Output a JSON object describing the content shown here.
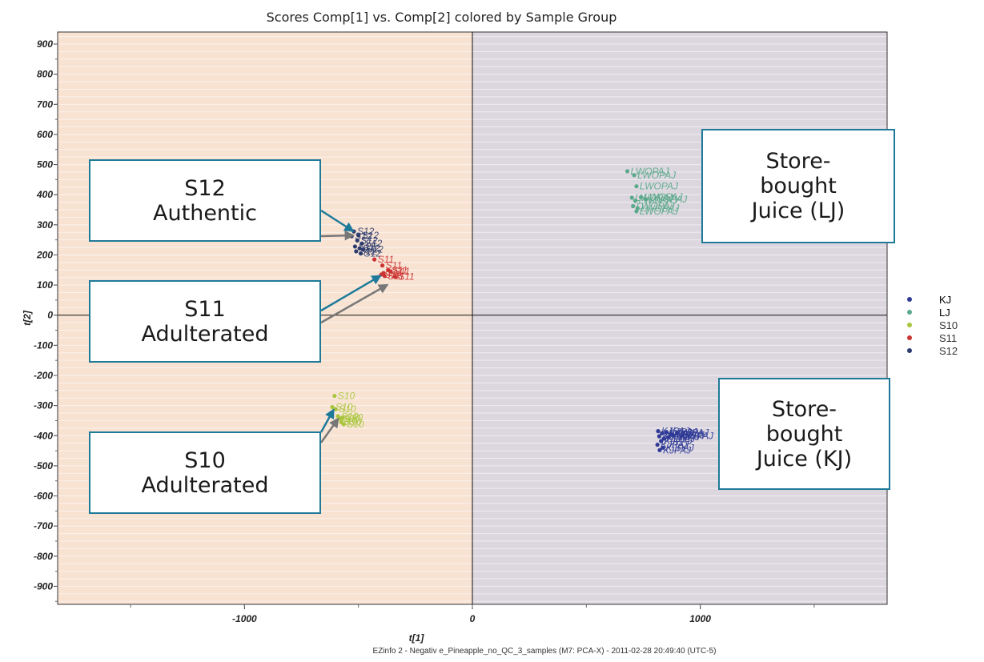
{
  "chart_data": {
    "type": "scatter",
    "title": "Scores Comp[1] vs. Comp[2] colored by Sample Group",
    "xlabel": "t[1]",
    "ylabel": "t[2]",
    "xlim": [
      -1820,
      1820
    ],
    "ylim": [
      -960,
      940
    ],
    "x_ticks": [
      -1000,
      0,
      1000
    ],
    "y_ticks": [
      900,
      800,
      700,
      600,
      500,
      400,
      300,
      200,
      100,
      0,
      -100,
      -200,
      -300,
      -400,
      -500,
      -600,
      -700,
      -800,
      -900
    ],
    "grid": "horizontal",
    "legend_position": "right",
    "footer": "EZinfo 2 - Negativ e_Pineapple_no_QC_3_samples (M7: PCA-X) - 2011-02-28 20:49:40 (UTC-5)",
    "regions": [
      {
        "name": "left-region",
        "x_range": [
          -1820,
          0
        ],
        "color": "#f8e3d3"
      },
      {
        "name": "right-region",
        "x_range": [
          0,
          1820
        ],
        "color": "#dcd7df"
      }
    ],
    "series": [
      {
        "name": "KJ",
        "color": "#2e3a96",
        "point_label": "KJPAJ",
        "points": [
          [
            815,
            -385
          ],
          [
            832,
            -392
          ],
          [
            850,
            -388
          ],
          [
            870,
            -395
          ],
          [
            820,
            -402
          ],
          [
            840,
            -410
          ],
          [
            860,
            -405
          ],
          [
            880,
            -398
          ],
          [
            828,
            -418
          ],
          [
            812,
            -430
          ],
          [
            835,
            -440
          ],
          [
            822,
            -448
          ],
          [
            900,
            -390
          ],
          [
            920,
            -400
          ]
        ]
      },
      {
        "name": "LJ",
        "color": "#5aa98a",
        "point_label": "LWOPAJ",
        "points": [
          [
            680,
            478
          ],
          [
            710,
            465
          ],
          [
            720,
            428
          ],
          [
            700,
            390
          ],
          [
            715,
            380
          ],
          [
            740,
            392
          ],
          [
            760,
            385
          ],
          [
            705,
            362
          ],
          [
            725,
            355
          ],
          [
            720,
            345
          ]
        ]
      },
      {
        "name": "S10",
        "color": "#a8c63c",
        "point_label": "S10",
        "points": [
          [
            -605,
            -268
          ],
          [
            -615,
            -305
          ],
          [
            -600,
            -312
          ],
          [
            -590,
            -335
          ],
          [
            -580,
            -343
          ],
          [
            -570,
            -340
          ],
          [
            -595,
            -350
          ],
          [
            -565,
            -362
          ],
          [
            -575,
            -355
          ]
        ]
      },
      {
        "name": "S11",
        "color": "#cc3333",
        "point_label": "S11",
        "points": [
          [
            -430,
            185
          ],
          [
            -395,
            165
          ],
          [
            -370,
            150
          ],
          [
            -390,
            140
          ],
          [
            -360,
            145
          ],
          [
            -385,
            130
          ],
          [
            -340,
            128
          ],
          [
            -400,
            135
          ]
        ]
      },
      {
        "name": "S12",
        "color": "#2d3c6e",
        "point_label": "S12",
        "points": [
          [
            -520,
            278
          ],
          [
            -500,
            265
          ],
          [
            -530,
            262
          ],
          [
            -505,
            248
          ],
          [
            -485,
            238
          ],
          [
            -515,
            228
          ],
          [
            -495,
            222
          ],
          [
            -480,
            218
          ],
          [
            -510,
            212
          ],
          [
            -490,
            205
          ]
        ]
      }
    ],
    "annotations": [
      {
        "id": "s12",
        "lines": [
          "S12",
          "Authentic"
        ]
      },
      {
        "id": "s11",
        "lines": [
          "S11",
          "Adulterated"
        ]
      },
      {
        "id": "s10",
        "lines": [
          "S10",
          "Adulterated"
        ]
      },
      {
        "id": "lj",
        "lines": [
          "Store-",
          "bought",
          "Juice (LJ)"
        ]
      },
      {
        "id": "kj",
        "lines": [
          "Store-",
          "bought",
          "Juice (KJ)"
        ]
      }
    ]
  }
}
